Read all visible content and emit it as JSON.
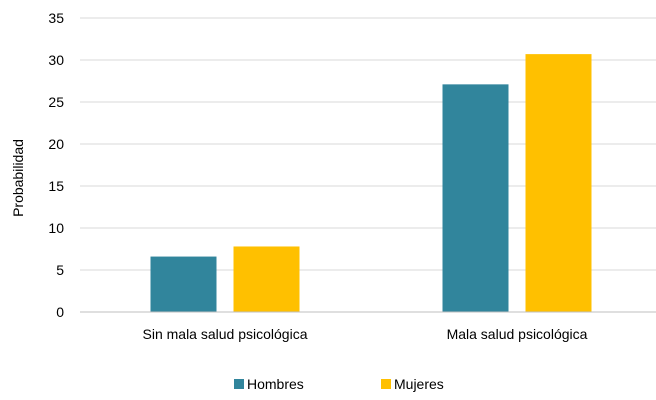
{
  "chart_data": {
    "type": "bar",
    "title": "",
    "xlabel": "",
    "ylabel": "Probabilidad",
    "categories": [
      "Sin mala salud psicológica",
      "Mala salud psicológica"
    ],
    "series": [
      {
        "name": "Hombres",
        "values": [
          6.6,
          27.1
        ],
        "color": "#31859c"
      },
      {
        "name": "Mujeres",
        "values": [
          7.8,
          30.7
        ],
        "color": "#ffc000"
      }
    ],
    "ylim": [
      0,
      35
    ],
    "yticks": [
      0,
      5,
      10,
      15,
      20,
      25,
      30,
      35
    ],
    "grid": true,
    "gridColor": "#d9d9d9",
    "legend_position": "bottom"
  }
}
